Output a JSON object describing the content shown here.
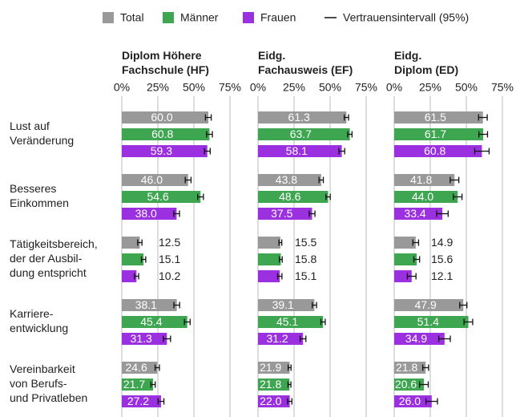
{
  "chart_data": {
    "type": "bar",
    "orientation": "horizontal",
    "categories": [
      "Lust auf\nVeränderung",
      "Besseres\nEinkommen",
      "Tätigkeitsbereich,\nder der Ausbil-\ndung entspricht",
      "Karriere-\nentwicklung",
      "Vereinbarkeit\nvon Berufs-\nund Privatleben"
    ],
    "series": [
      {
        "name": "Total",
        "color": "#999999"
      },
      {
        "name": "Männer",
        "color": "#3ea650"
      },
      {
        "name": "Frauen",
        "color": "#9b30e0"
      }
    ],
    "error_label": "Vertrauensintervall (95%)",
    "xlim": [
      0,
      75
    ],
    "xticks": [
      {
        "value": 0,
        "label": "0%"
      },
      {
        "value": 25,
        "label": "25%"
      },
      {
        "value": 50,
        "label": "50%"
      },
      {
        "value": 75,
        "label": "75%"
      }
    ],
    "grid": true,
    "panels": [
      {
        "title": "Diplom Höhere\nFachschule (HF)",
        "series": [
          {
            "values": [
              60.0,
              46.0,
              12.5,
              38.1,
              24.6
            ],
            "value_labels": [
              "60.0",
              "46.0",
              "12.5",
              "38.1",
              "24.6"
            ],
            "errors": [
              2,
              2,
              1.5,
              2,
              1.5
            ]
          },
          {
            "values": [
              60.8,
              54.6,
              15.1,
              45.4,
              21.7
            ],
            "value_labels": [
              "60.8",
              "54.6",
              "15.1",
              "45.4",
              "21.7"
            ],
            "errors": [
              2,
              2,
              1.5,
              2,
              1.5
            ]
          },
          {
            "values": [
              59.3,
              38.0,
              10.2,
              31.3,
              27.2
            ],
            "value_labels": [
              "59.3",
              "38.0",
              "10.2",
              "31.3",
              "27.2"
            ],
            "errors": [
              2,
              2,
              1.5,
              2.5,
              2
            ]
          }
        ]
      },
      {
        "title": "Eidg.\nFachausweis (EF)",
        "series": [
          {
            "values": [
              61.3,
              43.8,
              15.5,
              39.1,
              21.9
            ],
            "value_labels": [
              "61.3",
              "43.8",
              "15.5",
              "39.1",
              "21.9"
            ],
            "errors": [
              1.5,
              1.5,
              1,
              1.5,
              1
            ]
          },
          {
            "values": [
              63.7,
              48.6,
              15.8,
              45.1,
              21.8
            ],
            "value_labels": [
              "63.7",
              "48.6",
              "15.8",
              "45.1",
              "21.8"
            ],
            "errors": [
              1.5,
              1.5,
              1,
              1.5,
              1
            ]
          },
          {
            "values": [
              58.1,
              37.5,
              15.1,
              31.2,
              22.0
            ],
            "value_labels": [
              "58.1",
              "37.5",
              "15.1",
              "31.2",
              "22.0"
            ],
            "errors": [
              2,
              2,
              1.5,
              2,
              1.5
            ]
          }
        ]
      },
      {
        "title": "Eidg.\nDiplom (ED)",
        "series": [
          {
            "values": [
              61.5,
              41.8,
              14.9,
              47.9,
              21.8
            ],
            "value_labels": [
              "61.5",
              "41.8",
              "14.9",
              "47.9",
              "21.8"
            ],
            "errors": [
              3,
              3,
              2,
              2.5,
              2
            ]
          },
          {
            "values": [
              61.7,
              44.0,
              15.6,
              51.4,
              20.6
            ],
            "value_labels": [
              "61.7",
              "44.0",
              "15.6",
              "51.4",
              "20.6"
            ],
            "errors": [
              3,
              3,
              2,
              3,
              3
            ]
          },
          {
            "values": [
              60.8,
              33.4,
              12.1,
              34.9,
              26.0
            ],
            "value_labels": [
              "60.8",
              "33.4",
              "12.1",
              "34.9",
              "26.0"
            ],
            "errors": [
              5,
              4,
              3,
              4,
              4
            ]
          }
        ]
      }
    ]
  }
}
